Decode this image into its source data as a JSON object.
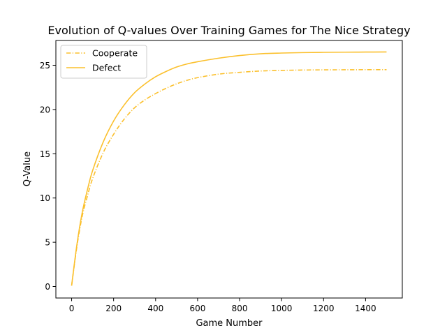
{
  "chart_data": {
    "type": "line",
    "title": "Evolution of Q-values Over Training Games for The Nice Strategy",
    "xlabel": "Game Number",
    "ylabel": "Q-Value",
    "xlim": [
      -75,
      1575
    ],
    "ylim": [
      -1.3,
      27.8
    ],
    "xticks": [
      0,
      200,
      400,
      600,
      800,
      1000,
      1200,
      1400
    ],
    "yticks": [
      0,
      5,
      10,
      15,
      20,
      25
    ],
    "grid": false,
    "legend_position": "top-left",
    "series": [
      {
        "name": "Cooperate",
        "color": "#fbc02d",
        "dash": "dashdot",
        "x": [
          0,
          25,
          50,
          75,
          100,
          150,
          200,
          250,
          300,
          350,
          400,
          450,
          500,
          550,
          600,
          700,
          800,
          900,
          1000,
          1100,
          1200,
          1300,
          1400,
          1500
        ],
        "y": [
          0.1,
          4.5,
          7.9,
          10.2,
          12.2,
          15.1,
          17.2,
          18.9,
          20.2,
          21.1,
          21.8,
          22.4,
          22.9,
          23.3,
          23.6,
          24.0,
          24.2,
          24.35,
          24.42,
          24.46,
          24.48,
          24.49,
          24.5,
          24.5
        ]
      },
      {
        "name": "Defect",
        "color": "#fbc02d",
        "dash": "solid",
        "x": [
          0,
          25,
          50,
          75,
          100,
          150,
          200,
          250,
          300,
          350,
          400,
          450,
          500,
          550,
          600,
          700,
          800,
          900,
          1000,
          1100,
          1200,
          1300,
          1400,
          1500
        ],
        "y": [
          0.1,
          4.7,
          8.3,
          10.9,
          13.1,
          16.3,
          18.7,
          20.5,
          21.9,
          22.9,
          23.7,
          24.3,
          24.8,
          25.15,
          25.4,
          25.8,
          26.1,
          26.3,
          26.38,
          26.43,
          26.46,
          26.48,
          26.49,
          26.5
        ]
      }
    ]
  }
}
